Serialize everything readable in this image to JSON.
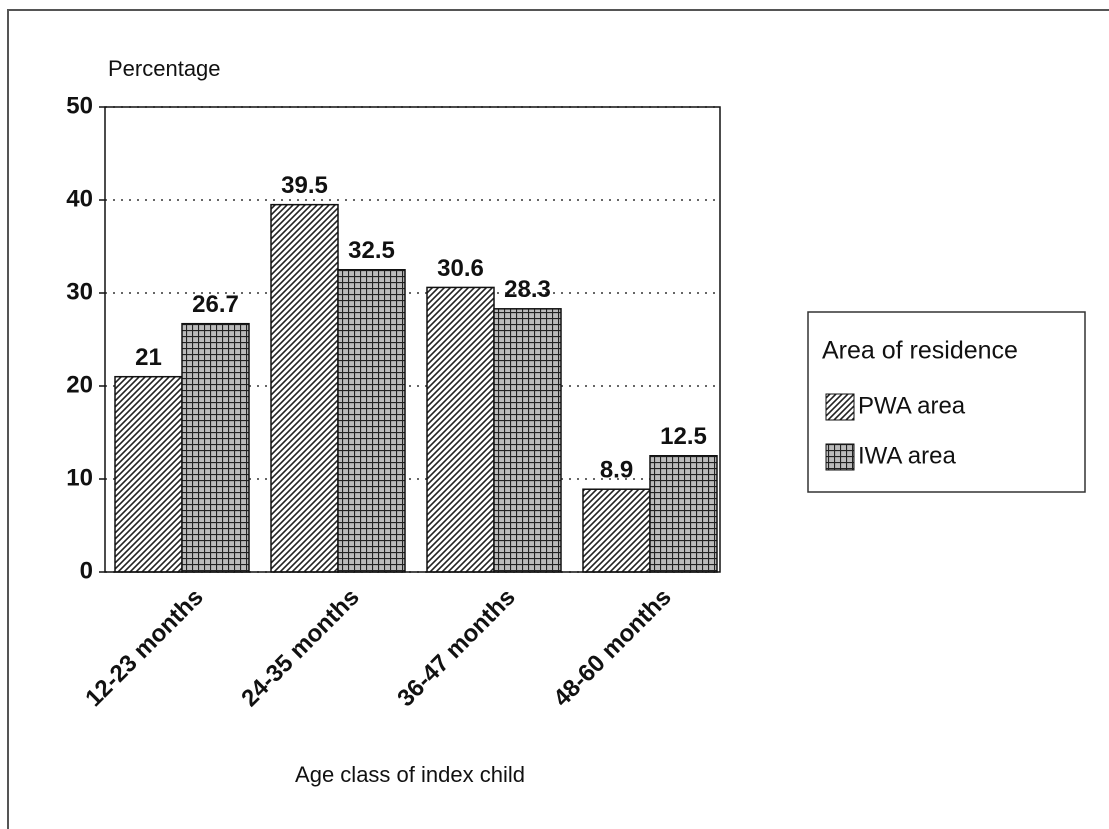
{
  "chart_data": {
    "type": "bar",
    "y_label": "Percentage",
    "x_label": "Age class of index child",
    "categories": [
      "12-23 months",
      "24-35 months",
      "36-47 months",
      "48-60 months"
    ],
    "series": [
      {
        "name": "PWA area",
        "color": "#222222",
        "pattern": "diagonal",
        "values": [
          21,
          39.5,
          30.6,
          8.9
        ]
      },
      {
        "name": "IWA area",
        "color": "#222222",
        "pattern": "grid",
        "values": [
          26.7,
          32.5,
          28.3,
          12.5
        ]
      }
    ],
    "legend_title": "Area of residence",
    "legend": "right",
    "ylim": [
      0,
      50
    ],
    "yticks": [
      0,
      10,
      20,
      30,
      40,
      50
    ],
    "grid": true
  }
}
